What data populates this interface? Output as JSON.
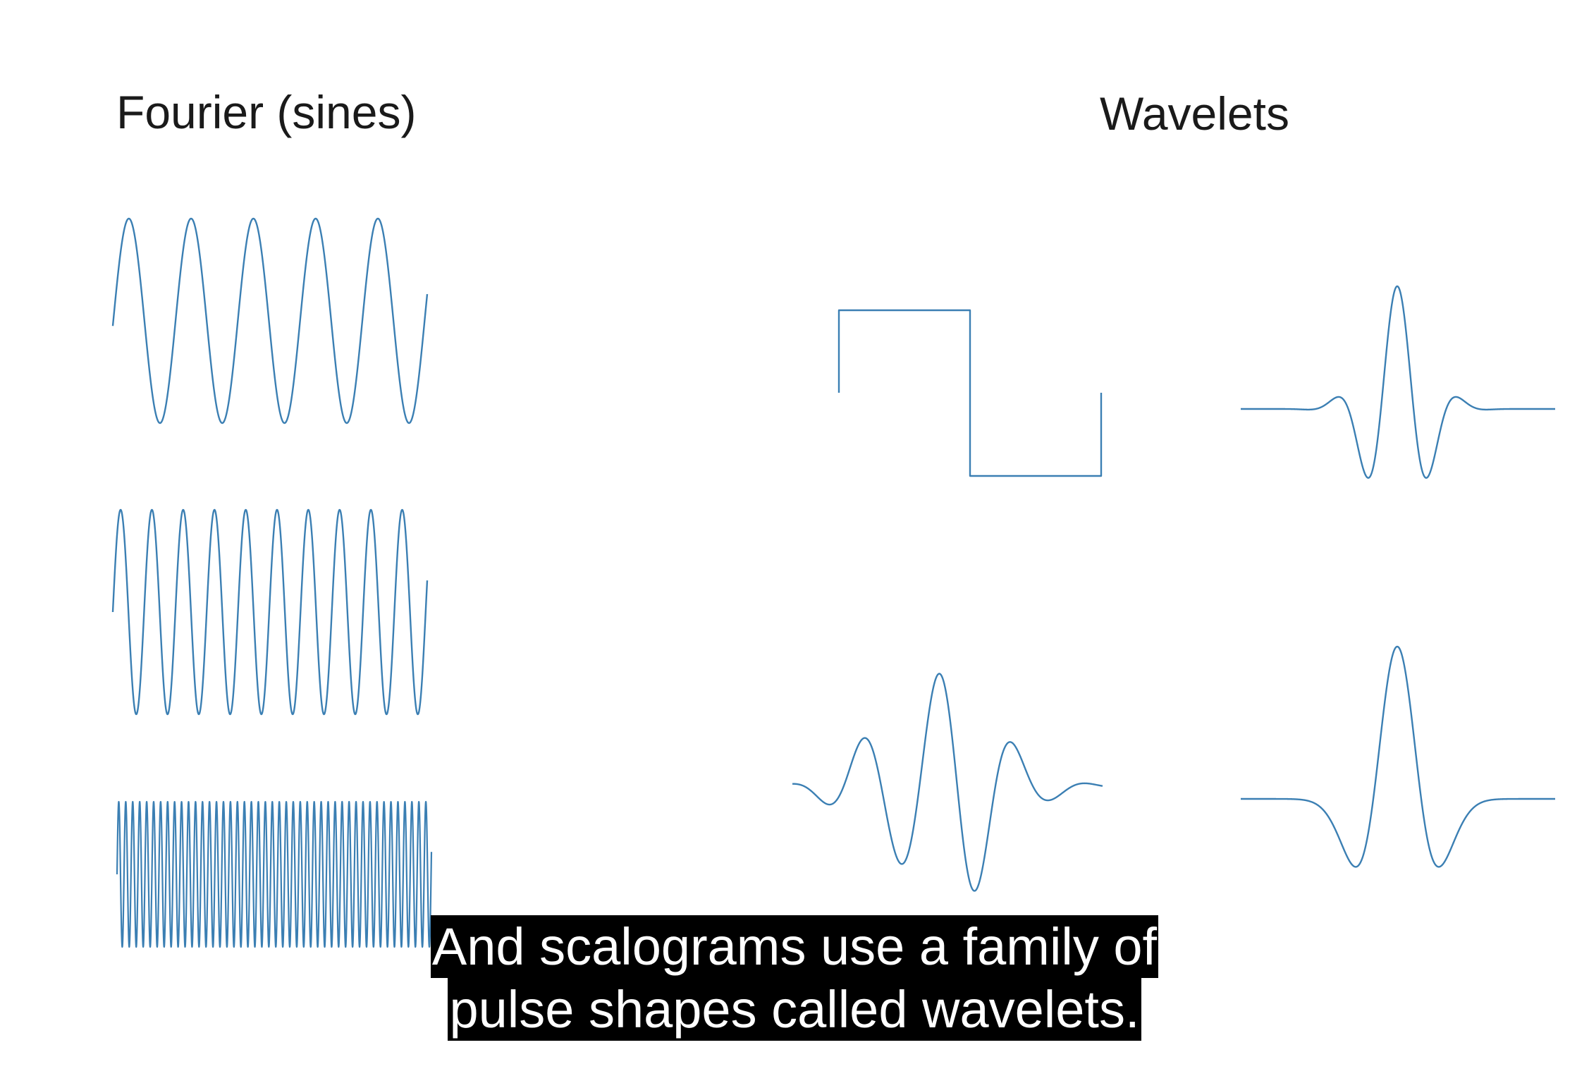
{
  "headings": {
    "fourier": "Fourier (sines)",
    "wavelets": "Wavelets"
  },
  "caption": {
    "line1": "And scalograms use a family of",
    "line2": "pulse shapes called wavelets."
  },
  "colors": {
    "stroke": "#3b7fb3",
    "caption_bg": "#000000",
    "caption_text": "#ffffff"
  },
  "sines": [
    {
      "name": "sine-wave-low-frequency",
      "cycles": 5
    },
    {
      "name": "sine-wave-medium-frequency",
      "cycles": 10
    },
    {
      "name": "sine-wave-high-frequency",
      "cycles": 45
    }
  ],
  "wavelets": [
    {
      "name": "haar-wavelet",
      "shape": "haar"
    },
    {
      "name": "morlet-wavelet",
      "shape": "morlet"
    },
    {
      "name": "daubechies-wavelet",
      "shape": "daubechies"
    },
    {
      "name": "mexican-hat-wavelet",
      "shape": "mexican-hat"
    }
  ]
}
